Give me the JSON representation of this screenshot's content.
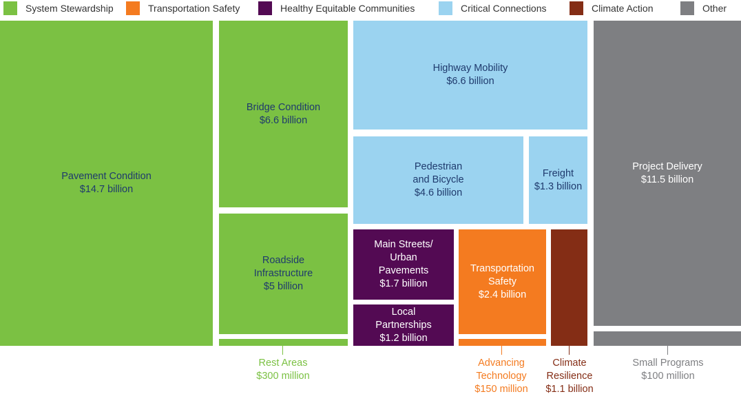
{
  "colors": {
    "system": "#7bc143",
    "safety": "#f47b20",
    "healthy": "#530a53",
    "critical": "#9bd3f0",
    "climate": "#842d15",
    "other": "#7e7f82"
  },
  "chart_data": {
    "type": "treemap",
    "legend": [
      "System Stewardship",
      "Transportation Safety",
      "Healthy Equitable Communities",
      "Critical Connections",
      "Climate Action",
      "Other"
    ],
    "items": [
      {
        "name": "Pavement Condition",
        "value_label": "$14.7 billion",
        "value": 14700,
        "category": "System Stewardship"
      },
      {
        "name": "Bridge Condition",
        "value_label": "$6.6 billion",
        "value": 6600,
        "category": "System Stewardship"
      },
      {
        "name": "Roadside\nInfrastructure",
        "value_label": "$5 billion",
        "value": 5000,
        "category": "System Stewardship"
      },
      {
        "name": "Rest Areas",
        "value_label": "$300 million",
        "value": 300,
        "category": "System Stewardship"
      },
      {
        "name": "Highway Mobility",
        "value_label": "$6.6 billion",
        "value": 6600,
        "category": "Critical Connections"
      },
      {
        "name": "Pedestrian\nand Bicycle",
        "value_label": "$4.6 billion",
        "value": 4600,
        "category": "Critical Connections"
      },
      {
        "name": "Freight",
        "value_label": "$1.3 billion",
        "value": 1300,
        "category": "Critical Connections"
      },
      {
        "name": "Main Streets/\nUrban\nPavements",
        "value_label": "$1.7 billion",
        "value": 1700,
        "category": "Healthy Equitable Communities"
      },
      {
        "name": "Local\nPartnerships",
        "value_label": "$1.2 billion",
        "value": 1200,
        "category": "Healthy Equitable Communities"
      },
      {
        "name": "Transportation\nSafety",
        "value_label": "$2.4 billion",
        "value": 2400,
        "category": "Transportation Safety"
      },
      {
        "name": "Advancing\nTechnology",
        "value_label": "$150 million",
        "value": 150,
        "category": "Transportation Safety"
      },
      {
        "name": "Climate\nResilience",
        "value_label": "$1.1 billion",
        "value": 1100,
        "category": "Climate Action"
      },
      {
        "name": "Project Delivery",
        "value_label": "$11.5 billion",
        "value": 11500,
        "category": "Other"
      },
      {
        "name": "Small Programs",
        "value_label": "$100 million",
        "value": 100,
        "category": "Other"
      }
    ]
  }
}
